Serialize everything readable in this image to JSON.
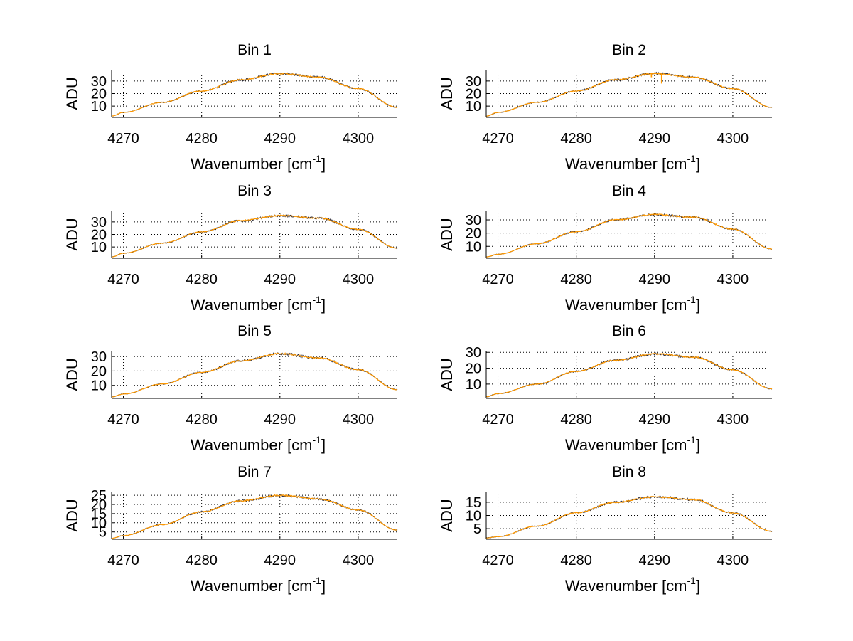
{
  "figure_colors": {
    "background": "#ffffff",
    "axes": "#000000",
    "grid": "#000000",
    "spectrum_dark": "#2a2a3a",
    "spectrum_orange": "#ff9900"
  },
  "chart_data": [
    {
      "type": "line",
      "title": "Bin 1",
      "xlabel_main": "Wavenumber [cm",
      "xlabel_sup": "-1",
      "xlabel_end": "]",
      "ylabel": "ADU",
      "xlim": [
        4268.5,
        4305
      ],
      "ylim": [
        1,
        39
      ],
      "xticks": [
        4270,
        4280,
        4290,
        4300
      ],
      "xtick_labels": [
        "4270",
        "4280",
        "4290",
        "4300"
      ],
      "yticks": [
        10,
        20,
        30
      ],
      "ytick_labels": [
        "10",
        "20",
        "30"
      ],
      "grid": true,
      "series": [
        {
          "name": "spectrum",
          "x": [
            4268.5,
            4270,
            4275,
            4280,
            4285,
            4290,
            4295,
            4300,
            4305
          ],
          "values": [
            2,
            5,
            13,
            22,
            31,
            36,
            33,
            24,
            9
          ]
        }
      ],
      "features": []
    },
    {
      "type": "line",
      "title": "Bin 2",
      "xlabel_main": "Wavenumber [cm",
      "xlabel_sup": "-1",
      "xlabel_end": "]",
      "ylabel": "ADU",
      "xlim": [
        4268.5,
        4305
      ],
      "ylim": [
        1,
        39
      ],
      "xticks": [
        4270,
        4280,
        4290,
        4300
      ],
      "xtick_labels": [
        "4270",
        "4280",
        "4290",
        "4300"
      ],
      "yticks": [
        10,
        20,
        30
      ],
      "ytick_labels": [
        "10",
        "20",
        "30"
      ],
      "grid": true,
      "series": [
        {
          "name": "spectrum",
          "x": [
            4268.5,
            4270,
            4275,
            4280,
            4285,
            4290,
            4295,
            4300,
            4305
          ],
          "values": [
            2,
            5,
            13,
            22,
            31,
            36,
            33,
            24,
            9
          ]
        }
      ],
      "features": [
        {
          "x": 4290.9,
          "value": 28
        },
        {
          "x": 4289.6,
          "value": 33
        }
      ]
    },
    {
      "type": "line",
      "title": "Bin 3",
      "xlabel_main": "Wavenumber [cm",
      "xlabel_sup": "-1",
      "xlabel_end": "]",
      "ylabel": "ADU",
      "xlim": [
        4268.5,
        4305
      ],
      "ylim": [
        1,
        39
      ],
      "xticks": [
        4270,
        4280,
        4290,
        4300
      ],
      "xtick_labels": [
        "4270",
        "4280",
        "4290",
        "4300"
      ],
      "yticks": [
        10,
        20,
        30
      ],
      "ytick_labels": [
        "10",
        "20",
        "30"
      ],
      "grid": true,
      "series": [
        {
          "name": "spectrum",
          "x": [
            4268.5,
            4270,
            4275,
            4280,
            4285,
            4290,
            4295,
            4300,
            4305
          ],
          "values": [
            2,
            5,
            13,
            22,
            31,
            35,
            33,
            24,
            9
          ]
        }
      ],
      "features": []
    },
    {
      "type": "line",
      "title": "Bin 4",
      "xlabel_main": "Wavenumber [cm",
      "xlabel_sup": "-1",
      "xlabel_end": "]",
      "ylabel": "ADU",
      "xlim": [
        4268.5,
        4305
      ],
      "ylim": [
        1,
        37
      ],
      "xticks": [
        4270,
        4280,
        4290,
        4300
      ],
      "xtick_labels": [
        "4270",
        "4280",
        "4290",
        "4300"
      ],
      "yticks": [
        10,
        20,
        30
      ],
      "ytick_labels": [
        "10",
        "20",
        "30"
      ],
      "grid": true,
      "series": [
        {
          "name": "spectrum",
          "x": [
            4268.5,
            4270,
            4275,
            4280,
            4285,
            4290,
            4295,
            4300,
            4305
          ],
          "values": [
            2,
            4,
            12,
            21,
            30,
            34,
            32,
            23,
            8
          ]
        }
      ],
      "features": []
    },
    {
      "type": "line",
      "title": "Bin 5",
      "xlabel_main": "Wavenumber [cm",
      "xlabel_sup": "-1",
      "xlabel_end": "]",
      "ylabel": "ADU",
      "xlim": [
        4268.5,
        4305
      ],
      "ylim": [
        1,
        34
      ],
      "xticks": [
        4270,
        4280,
        4290,
        4300
      ],
      "xtick_labels": [
        "4270",
        "4280",
        "4290",
        "4300"
      ],
      "yticks": [
        10,
        20,
        30
      ],
      "ytick_labels": [
        "10",
        "20",
        "30"
      ],
      "grid": true,
      "series": [
        {
          "name": "spectrum",
          "x": [
            4268.5,
            4270,
            4275,
            4280,
            4285,
            4290,
            4295,
            4300,
            4305
          ],
          "values": [
            2,
            4,
            11,
            19,
            27,
            32,
            29,
            21,
            7
          ]
        }
      ],
      "features": []
    },
    {
      "type": "line",
      "title": "Bin 6",
      "xlabel_main": "Wavenumber [cm",
      "xlabel_sup": "-1",
      "xlabel_end": "]",
      "ylabel": "ADU",
      "xlim": [
        4268.5,
        4305
      ],
      "ylim": [
        1,
        31
      ],
      "xticks": [
        4270,
        4280,
        4290,
        4300
      ],
      "xtick_labels": [
        "4270",
        "4280",
        "4290",
        "4300"
      ],
      "yticks": [
        10,
        20,
        30
      ],
      "ytick_labels": [
        "10",
        "20",
        "30"
      ],
      "grid": true,
      "series": [
        {
          "name": "spectrum",
          "x": [
            4268.5,
            4270,
            4275,
            4280,
            4285,
            4290,
            4295,
            4300,
            4305
          ],
          "values": [
            2,
            4,
            10,
            18,
            25,
            29,
            27,
            19,
            7
          ]
        }
      ],
      "features": []
    },
    {
      "type": "line",
      "title": "Bin 7",
      "xlabel_main": "Wavenumber [cm",
      "xlabel_sup": "-1",
      "xlabel_end": "]",
      "ylabel": "ADU",
      "xlim": [
        4268.5,
        4305
      ],
      "ylim": [
        1,
        27
      ],
      "xticks": [
        4270,
        4280,
        4290,
        4300
      ],
      "xtick_labels": [
        "4270",
        "4280",
        "4290",
        "4300"
      ],
      "yticks": [
        5,
        10,
        15,
        20,
        25
      ],
      "ytick_labels": [
        "5",
        "10",
        "15",
        "20",
        "25"
      ],
      "grid": true,
      "series": [
        {
          "name": "spectrum",
          "x": [
            4268.5,
            4270,
            4275,
            4280,
            4285,
            4290,
            4295,
            4300,
            4305
          ],
          "values": [
            1.5,
            3,
            9,
            16,
            22,
            25,
            23,
            17,
            6
          ]
        }
      ],
      "features": []
    },
    {
      "type": "line",
      "title": "Bin 8",
      "xlabel_main": "Wavenumber [cm",
      "xlabel_sup": "-1",
      "xlabel_end": "]",
      "ylabel": "ADU",
      "xlim": [
        4268.5,
        4305
      ],
      "ylim": [
        1,
        19
      ],
      "xticks": [
        4270,
        4280,
        4290,
        4300
      ],
      "xtick_labels": [
        "4270",
        "4280",
        "4290",
        "4300"
      ],
      "yticks": [
        5,
        10,
        15
      ],
      "ytick_labels": [
        "5",
        "10",
        "15"
      ],
      "grid": true,
      "series": [
        {
          "name": "spectrum",
          "x": [
            4268.5,
            4270,
            4275,
            4280,
            4285,
            4290,
            4295,
            4300,
            4305
          ],
          "values": [
            1.5,
            2,
            6,
            11,
            15,
            17,
            16,
            11,
            4
          ]
        }
      ],
      "features": []
    }
  ]
}
